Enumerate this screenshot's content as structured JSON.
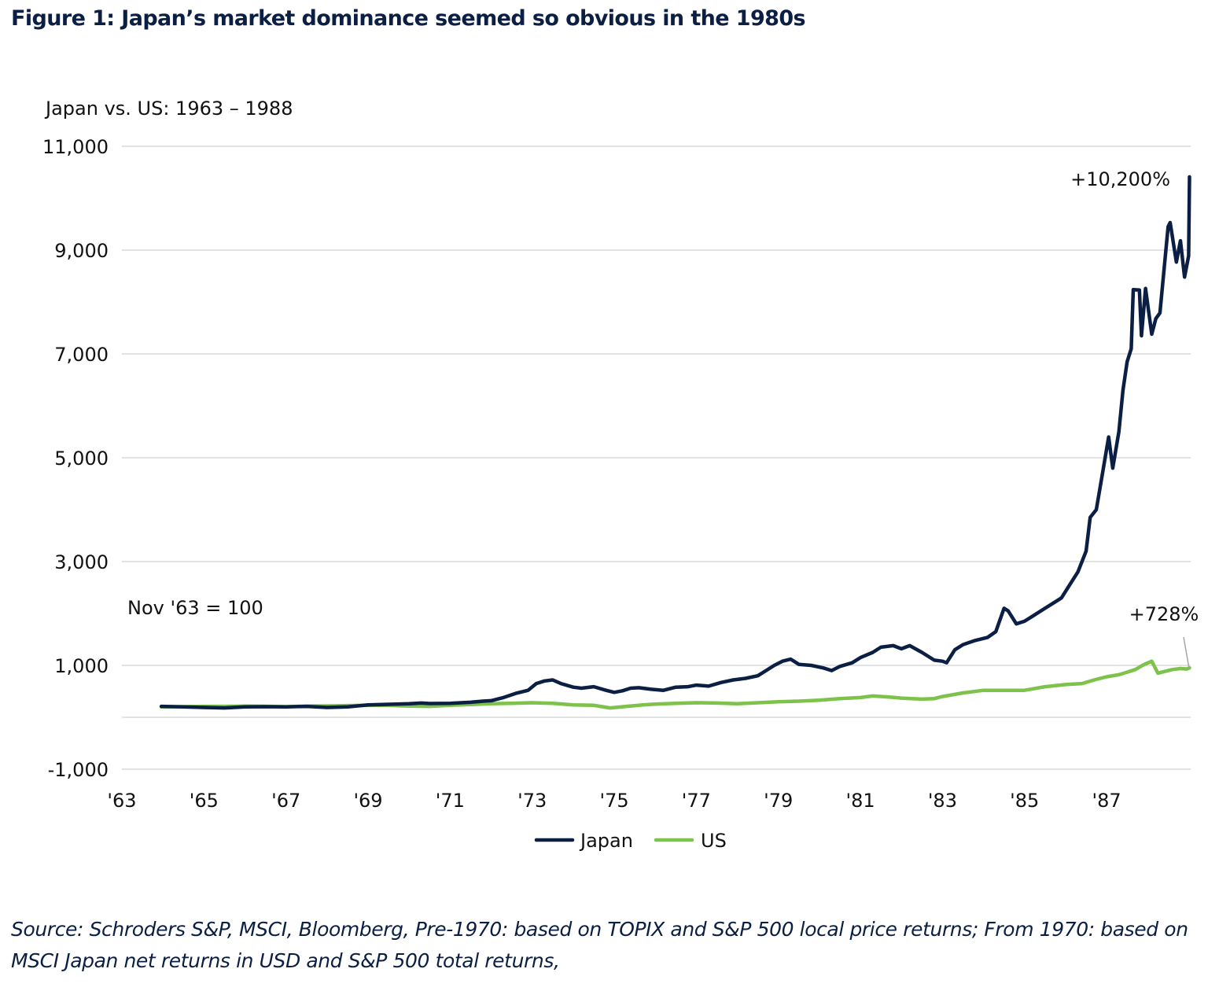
{
  "title": "Figure 1: Japan’s market dominance seemed so obvious in the 1980s",
  "footer": "Source: Schroders S&P, MSCI, Bloomberg, Pre-1970: based on TOPIX and S&P 500 local price returns; From 1970: based on MSCI Japan net returns in USD and S&P 500 total returns,",
  "chart_data": {
    "type": "line",
    "title": "Japan vs. US: 1963 – 1988",
    "subtitle": "Japan vs. US: 1963 – 1988",
    "xlabel": "",
    "ylabel": "",
    "xlim": [
      1963,
      1989.1
    ],
    "ylim": [
      -1000,
      11000
    ],
    "grid": true,
    "legend_position": "bottom-center",
    "y_ticks": [
      -1000,
      1000,
      3000,
      5000,
      7000,
      9000,
      11000
    ],
    "y_tick_labels": [
      "-1,000",
      "1,000",
      "3,000",
      "5,000",
      "7,000",
      "9,000",
      "11,000"
    ],
    "x_ticks": [
      1963,
      1965,
      1967,
      1969,
      1971,
      1973,
      1975,
      1977,
      1979,
      1981,
      1983,
      1985,
      1987
    ],
    "x_tick_labels": [
      "'63",
      "'65",
      "'67",
      "'69",
      "'71",
      "'73",
      "'75",
      "'77",
      "'79",
      "'81",
      "'83",
      "'85",
      "'87"
    ],
    "annotations": [
      {
        "text": "Nov '63 = 100",
        "anchor_x": 1963.15,
        "anchor_y": 1600
      },
      {
        "text": "+10,200%",
        "anchor_x": 1987.6,
        "anchor_y": 10300,
        "series": "Japan"
      },
      {
        "text": "+728%",
        "anchor_x": 1988.6,
        "anchor_y": 1900,
        "series": "US",
        "leader_line": true
      }
    ],
    "series": [
      {
        "name": "Japan",
        "color": "#0b1f44",
        "x": [
          1963.96,
          1964.5,
          1965.0,
          1965.5,
          1966.0,
          1966.5,
          1967.0,
          1967.5,
          1968.0,
          1968.5,
          1969.0,
          1969.5,
          1970.0,
          1970.3,
          1970.5,
          1971.0,
          1971.5,
          1971.8,
          1972.0,
          1972.3,
          1972.6,
          1972.9,
          1973.1,
          1973.3,
          1973.5,
          1973.7,
          1974.0,
          1974.2,
          1974.5,
          1974.8,
          1975.0,
          1975.2,
          1975.4,
          1975.6,
          1975.9,
          1976.2,
          1976.5,
          1976.8,
          1977.0,
          1977.3,
          1977.6,
          1977.9,
          1978.2,
          1978.5,
          1978.7,
          1978.9,
          1979.1,
          1979.3,
          1979.5,
          1979.8,
          1980.1,
          1980.3,
          1980.5,
          1980.8,
          1981.0,
          1981.3,
          1981.5,
          1981.8,
          1982.0,
          1982.2,
          1982.5,
          1982.8,
          1983.0,
          1983.1,
          1983.3,
          1983.5,
          1983.8,
          1984.1,
          1984.3,
          1984.5,
          1984.6,
          1984.8,
          1985.0,
          1985.2,
          1985.5,
          1985.7,
          1985.9,
          1986.1,
          1986.3,
          1986.5,
          1986.6,
          1986.75,
          1986.9,
          1987.05,
          1987.15,
          1987.3,
          1987.4,
          1987.5,
          1987.6,
          1987.65,
          1987.8,
          1987.85,
          1987.95,
          1988.1,
          1988.2,
          1988.3,
          1988.5,
          1988.55,
          1988.7,
          1988.8,
          1988.9,
          1989.0,
          1989.02
        ],
        "values": [
          210,
          200,
          190,
          180,
          200,
          205,
          200,
          210,
          190,
          200,
          240,
          250,
          260,
          275,
          265,
          270,
          290,
          310,
          320,
          380,
          460,
          520,
          650,
          700,
          720,
          650,
          580,
          560,
          590,
          520,
          480,
          510,
          560,
          570,
          540,
          520,
          580,
          590,
          620,
          600,
          670,
          720,
          750,
          800,
          900,
          1000,
          1080,
          1120,
          1020,
          1000,
          950,
          900,
          980,
          1050,
          1150,
          1250,
          1350,
          1380,
          1320,
          1380,
          1250,
          1100,
          1080,
          1050,
          1300,
          1400,
          1480,
          1540,
          1650,
          2100,
          2050,
          1800,
          1850,
          1950,
          2100,
          2200,
          2300,
          2550,
          2800,
          3200,
          3850,
          4000,
          4700,
          5400,
          4800,
          5500,
          6300,
          6850,
          7100,
          8240,
          8230,
          7350,
          8260,
          7380,
          7680,
          7790,
          9450,
          9530,
          8770,
          9180,
          8480,
          8890,
          10410
        ]
      },
      {
        "name": "US",
        "color": "#7dc24b",
        "x": [
          1963.96,
          1964.5,
          1965.0,
          1965.5,
          1966.0,
          1966.5,
          1967.0,
          1967.5,
          1968.0,
          1968.5,
          1969.0,
          1969.5,
          1970.0,
          1970.5,
          1971.0,
          1971.5,
          1972.0,
          1972.5,
          1973.0,
          1973.5,
          1974.0,
          1974.5,
          1974.9,
          1975.3,
          1975.7,
          1976.0,
          1976.5,
          1977.0,
          1977.5,
          1978.0,
          1978.5,
          1979.0,
          1979.5,
          1980.0,
          1980.5,
          1981.0,
          1981.3,
          1981.7,
          1982.0,
          1982.5,
          1982.8,
          1983.0,
          1983.5,
          1984.0,
          1984.5,
          1985.0,
          1985.5,
          1986.0,
          1986.4,
          1986.7,
          1987.0,
          1987.3,
          1987.5,
          1987.7,
          1987.9,
          1988.1,
          1988.25,
          1988.4,
          1988.6,
          1988.8,
          1988.95,
          1989.02
        ],
        "values": [
          200,
          205,
          210,
          210,
          215,
          212,
          205,
          215,
          220,
          225,
          230,
          230,
          215,
          210,
          230,
          245,
          260,
          270,
          280,
          270,
          240,
          230,
          180,
          210,
          240,
          255,
          270,
          280,
          275,
          260,
          280,
          300,
          310,
          330,
          360,
          380,
          410,
          390,
          370,
          350,
          360,
          400,
          470,
          520,
          520,
          520,
          590,
          630,
          650,
          720,
          780,
          820,
          870,
          920,
          1010,
          1080,
          850,
          880,
          920,
          940,
          930,
          950
        ]
      }
    ]
  },
  "legend": [
    {
      "label": "Japan",
      "color": "#0b1f44"
    },
    {
      "label": "US",
      "color": "#7dc24b"
    }
  ]
}
